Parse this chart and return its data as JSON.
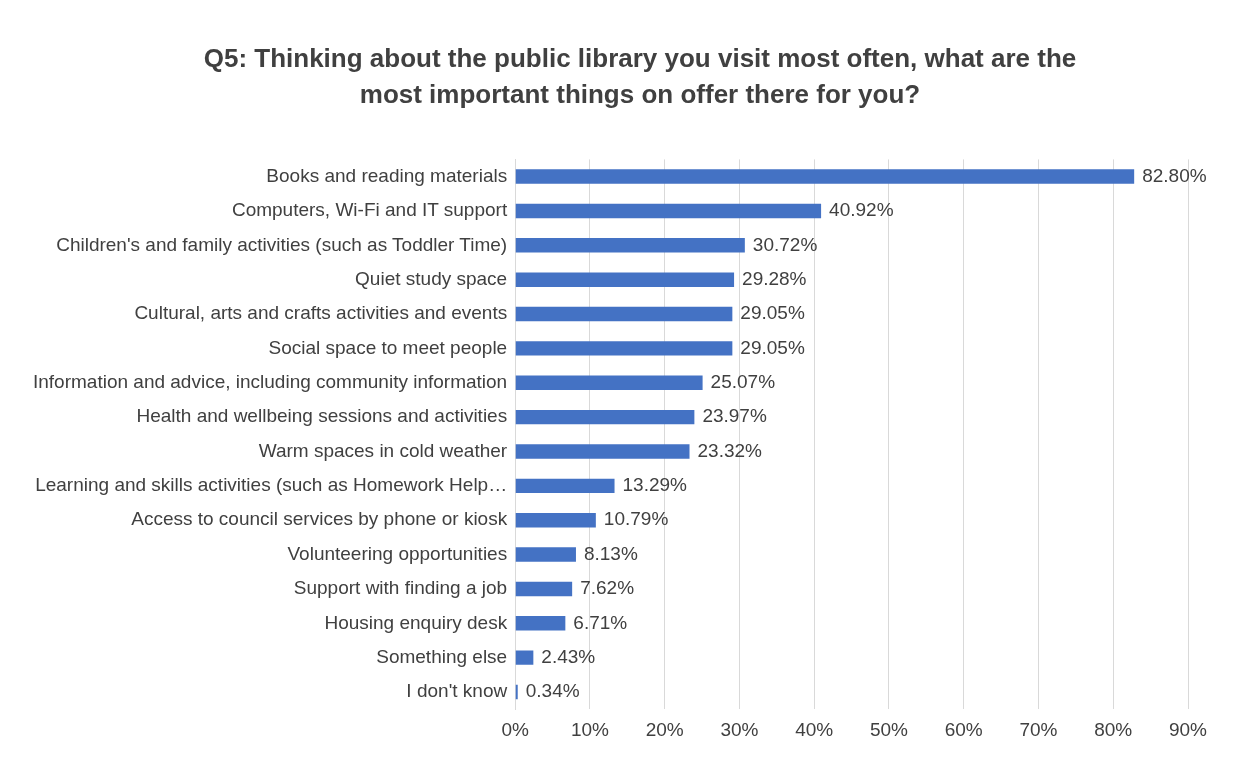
{
  "chart_data": {
    "type": "bar",
    "orientation": "horizontal",
    "title": "Q5: Thinking about the public library you visit most often, what are the most important things on offer there for you?",
    "categories": [
      "Books and reading materials",
      "Computers, Wi-Fi and IT support",
      "Children's and family activities (such as Toddler Time)",
      "Quiet study space",
      "Cultural, arts and crafts activities and events",
      "Social space to meet people",
      "Information and advice, including community information",
      "Health and wellbeing sessions and activities",
      "Warm spaces in cold weather",
      "Learning and skills activities (such as Homework Help…",
      "Access to council services by phone or kiosk",
      "Volunteering opportunities",
      "Support with finding a job",
      "Housing enquiry desk",
      "Something else",
      "I don't know"
    ],
    "values": [
      82.8,
      40.92,
      30.72,
      29.28,
      29.05,
      29.05,
      25.07,
      23.97,
      23.32,
      13.29,
      10.79,
      8.13,
      7.62,
      6.71,
      2.43,
      0.34
    ],
    "value_labels": [
      "82.80%",
      "40.92%",
      "30.72%",
      "29.28%",
      "29.05%",
      "29.05%",
      "25.07%",
      "23.97%",
      "23.32%",
      "13.29%",
      "10.79%",
      "8.13%",
      "7.62%",
      "6.71%",
      "2.43%",
      "0.34%"
    ],
    "color": "#4472c4",
    "xlim": [
      0,
      90
    ],
    "xticks": [
      {
        "value": 0,
        "label": "0%"
      },
      {
        "value": 10,
        "label": "10%"
      },
      {
        "value": 20,
        "label": "20%"
      },
      {
        "value": 30,
        "label": "30%"
      },
      {
        "value": 40,
        "label": "40%"
      },
      {
        "value": 50,
        "label": "50%"
      },
      {
        "value": 60,
        "label": "60%"
      },
      {
        "value": 70,
        "label": "70%"
      },
      {
        "value": 80,
        "label": "80%"
      },
      {
        "value": 90,
        "label": "90%"
      }
    ],
    "grid": "x",
    "legend": false
  }
}
